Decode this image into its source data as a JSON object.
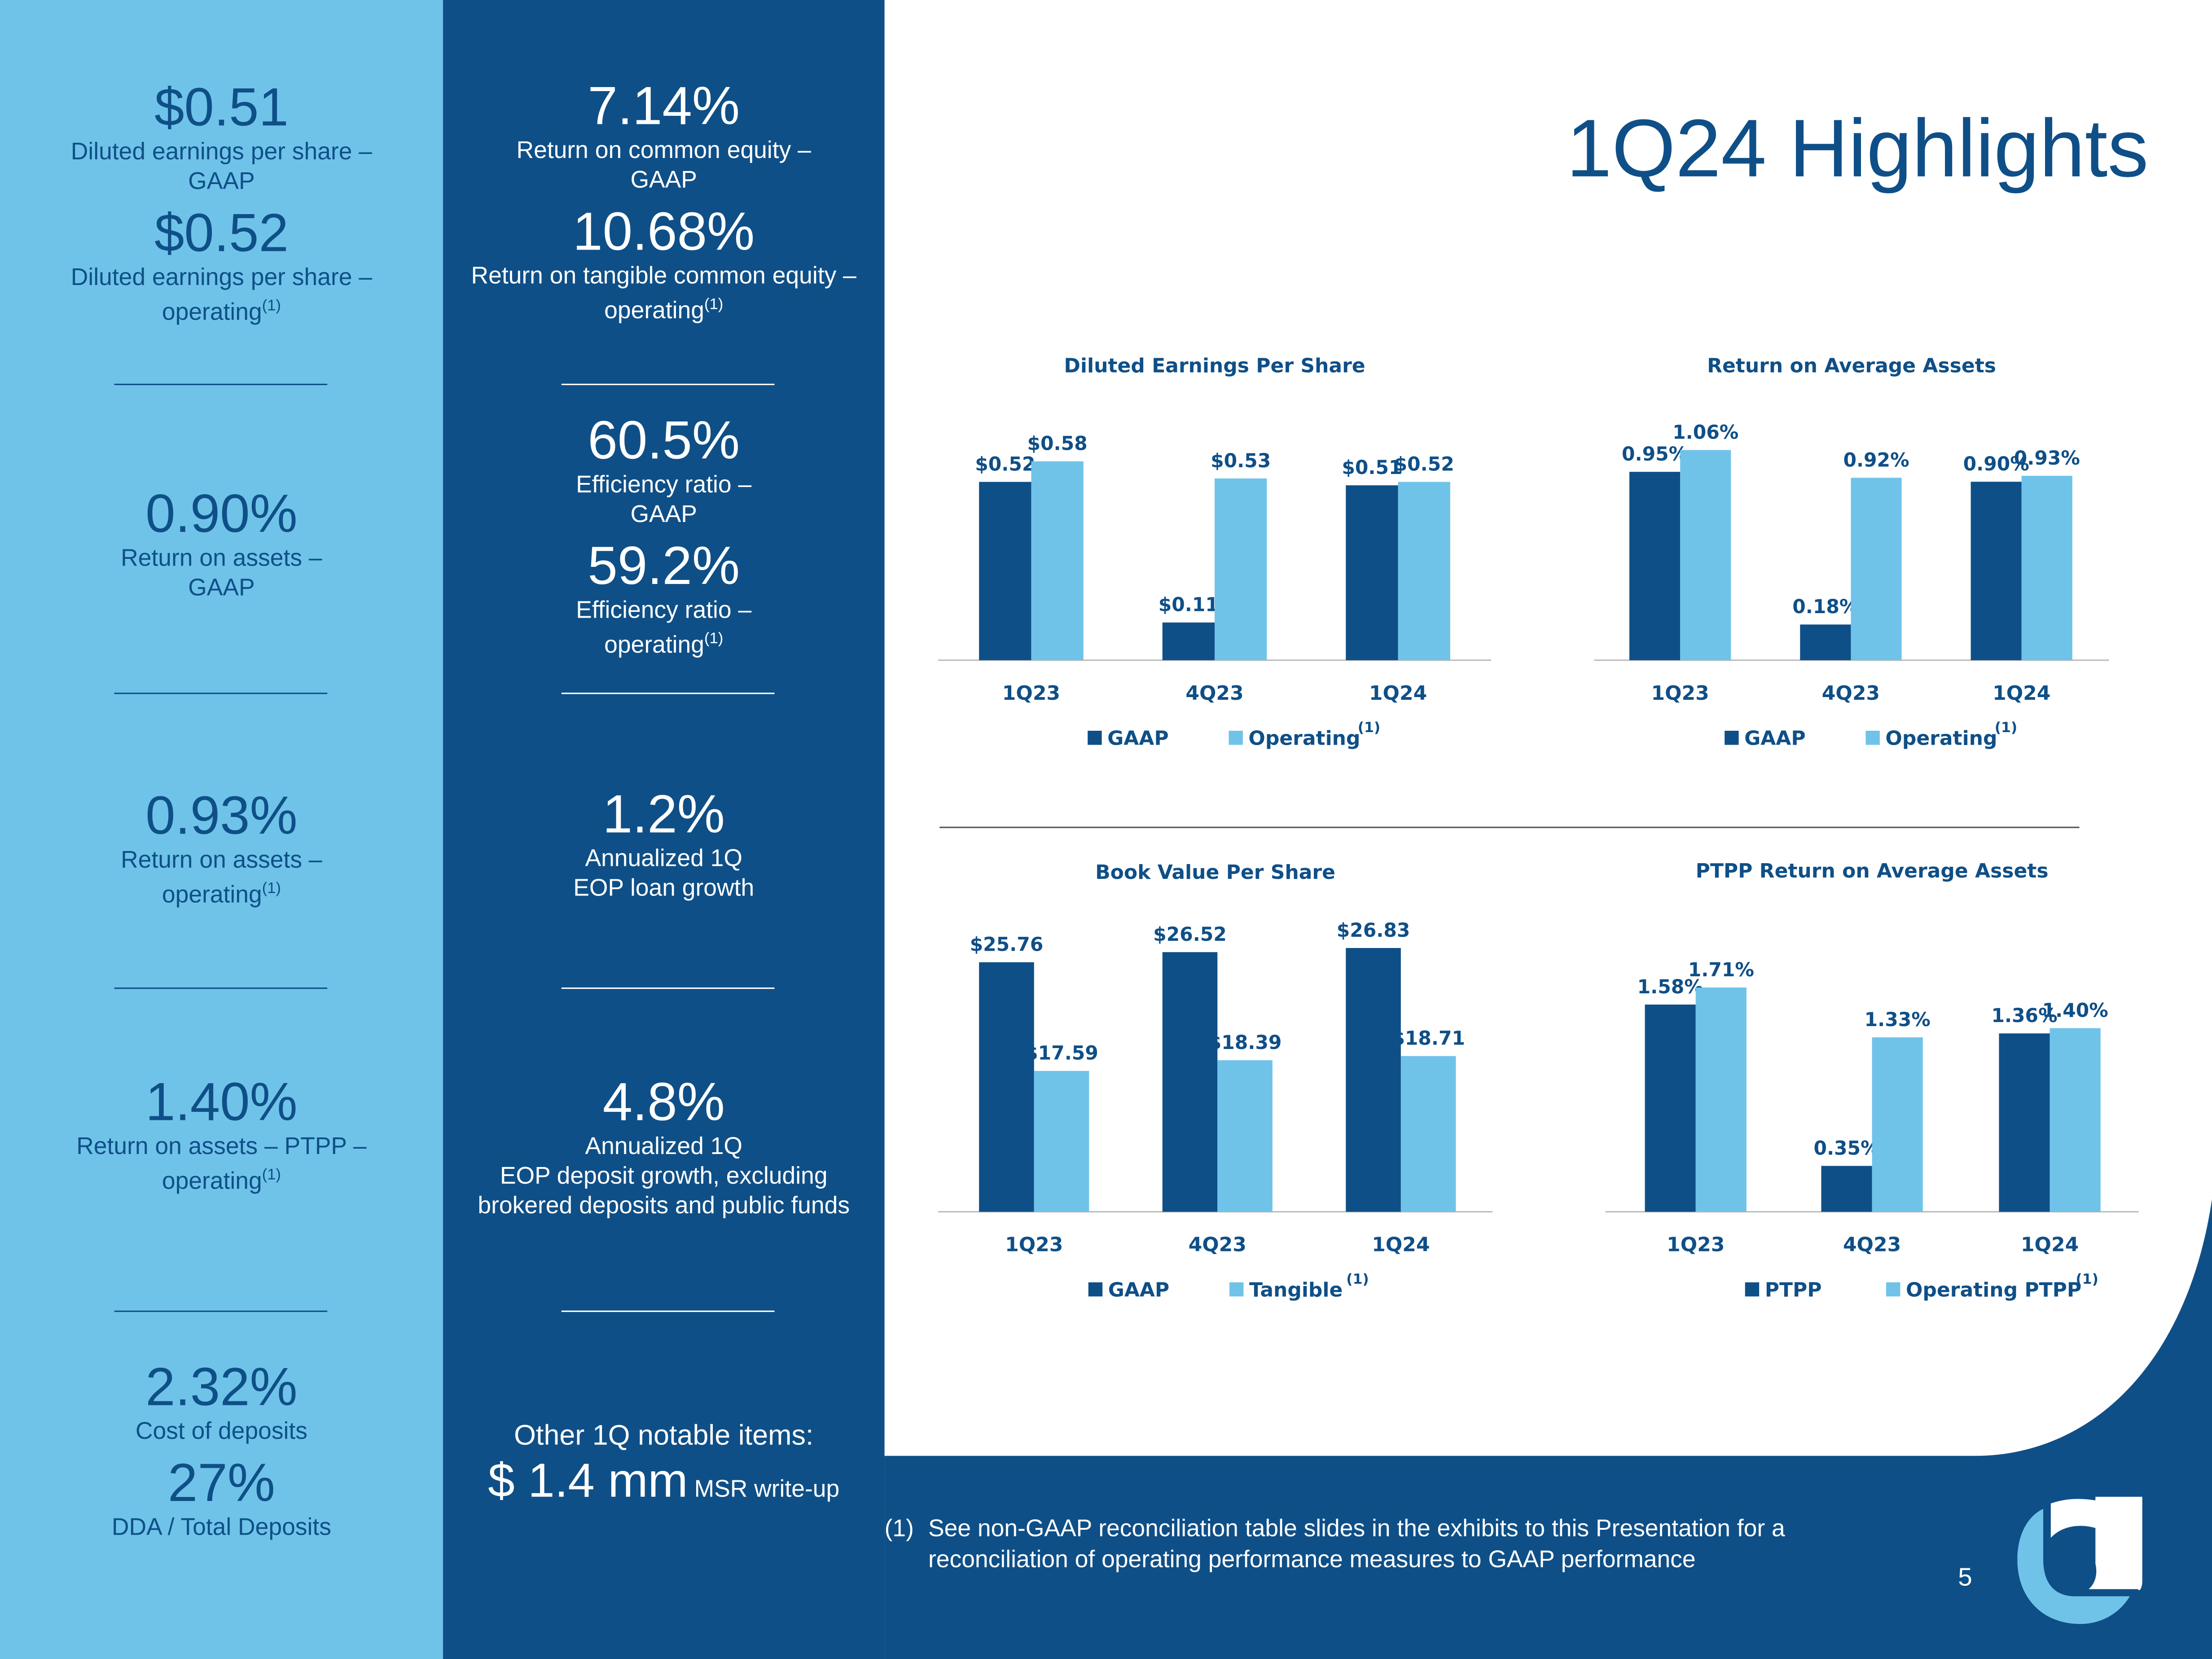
{
  "title": "1Q24 Highlights",
  "left_column": [
    {
      "value": "$0.51",
      "label": "Diluted earnings per share –",
      "label2": "GAAP"
    },
    {
      "value": "$0.52",
      "label": "Diluted earnings per share –",
      "label2": "operating",
      "note": "(1)"
    },
    {
      "value": "0.90%",
      "label": "Return on assets –",
      "label2": "GAAP"
    },
    {
      "value": "0.93%",
      "label": "Return on assets –",
      "label2": "operating",
      "note": "(1)"
    },
    {
      "value": "1.40%",
      "label": "Return on assets – PTPP –",
      "label2": "operating",
      "note": "(1)"
    },
    {
      "value": "2.32%",
      "label": "Cost of deposits"
    },
    {
      "value": "27%",
      "label": "DDA / Total Deposits"
    }
  ],
  "middle_column": [
    {
      "value": "7.14%",
      "label": "Return on common equity –",
      "label2": "GAAP"
    },
    {
      "value": "10.68%",
      "label": "Return on tangible common equity –",
      "label2": "operating",
      "note": "(1)"
    },
    {
      "value": "60.5%",
      "label": "Efficiency ratio –",
      "label2": "GAAP"
    },
    {
      "value": "59.2%",
      "label": "Efficiency ratio –",
      "label2": "operating",
      "note": "(1)"
    },
    {
      "value": "1.2%",
      "label": "Annualized 1Q",
      "label2": "EOP loan growth"
    },
    {
      "value": "4.8%",
      "label": "Annualized 1Q",
      "label2": "EOP deposit growth, excluding",
      "label3": "brokered deposits and public funds"
    },
    {
      "heading": "Other 1Q notable items:",
      "value": "$ 1.4 mm",
      "label": "MSR write-up"
    }
  ],
  "footnote": {
    "marker": "(1)",
    "line1": "See non-GAAP reconciliation table slides in the exhibits to this Presentation for a",
    "line2": "reconciliation of operating performance measures to GAAP performance"
  },
  "page_number": "5",
  "logo": {
    "text": "U"
  },
  "colors": {
    "dark": "#0f4f87",
    "light": "#6fc3e9"
  },
  "chart_data": [
    {
      "type": "bar",
      "title": "Diluted Earnings Per Share",
      "categories": [
        "1Q23",
        "4Q23",
        "1Q24"
      ],
      "ylim": [
        0,
        0.6
      ],
      "series": [
        {
          "name": "GAAP",
          "values": [
            0.52,
            0.11,
            0.51
          ],
          "labels": [
            "$0.52",
            "$0.11",
            "$0.51"
          ]
        },
        {
          "name": "Operating",
          "note": "(1)",
          "values": [
            0.58,
            0.53,
            0.52
          ],
          "labels": [
            "$0.58",
            "$0.53",
            "$0.52"
          ]
        }
      ]
    },
    {
      "type": "bar",
      "title": "Return on Average Assets",
      "categories": [
        "1Q23",
        "4Q23",
        "1Q24"
      ],
      "ylim": [
        0,
        1.1
      ],
      "series": [
        {
          "name": "GAAP",
          "values": [
            0.95,
            0.18,
            0.9
          ],
          "labels": [
            "0.95%",
            "0.18%",
            "0.90%"
          ]
        },
        {
          "name": "Operating",
          "note": "(1)",
          "values": [
            1.06,
            0.92,
            0.93
          ],
          "labels": [
            "1.06%",
            "0.92%",
            "0.93%"
          ]
        }
      ]
    },
    {
      "type": "bar",
      "title": "Book Value Per Share",
      "categories": [
        "1Q23",
        "4Q23",
        "1Q24"
      ],
      "ylim": [
        7,
        28
      ],
      "series": [
        {
          "name": "GAAP",
          "values": [
            25.76,
            26.52,
            26.83
          ],
          "labels": [
            "$25.76",
            "$26.52",
            "$26.83"
          ]
        },
        {
          "name": "Tangible",
          "note": "(1)",
          "values": [
            17.59,
            18.39,
            18.71
          ],
          "labels": [
            "$17.59",
            "$18.39",
            "$18.71"
          ]
        }
      ]
    },
    {
      "type": "bar",
      "title": "PTPP Return on Average Assets",
      "categories": [
        "1Q23",
        "4Q23",
        "1Q24"
      ],
      "ylim": [
        0,
        1.8
      ],
      "series": [
        {
          "name": "PTPP",
          "values": [
            1.58,
            0.35,
            1.36
          ],
          "labels": [
            "1.58%",
            "0.35%",
            "1.36%"
          ]
        },
        {
          "name": "Operating PTPP",
          "note": "(1)",
          "values": [
            1.71,
            1.33,
            1.4
          ],
          "labels": [
            "1.71%",
            "1.33%",
            "1.40%"
          ]
        }
      ]
    }
  ]
}
